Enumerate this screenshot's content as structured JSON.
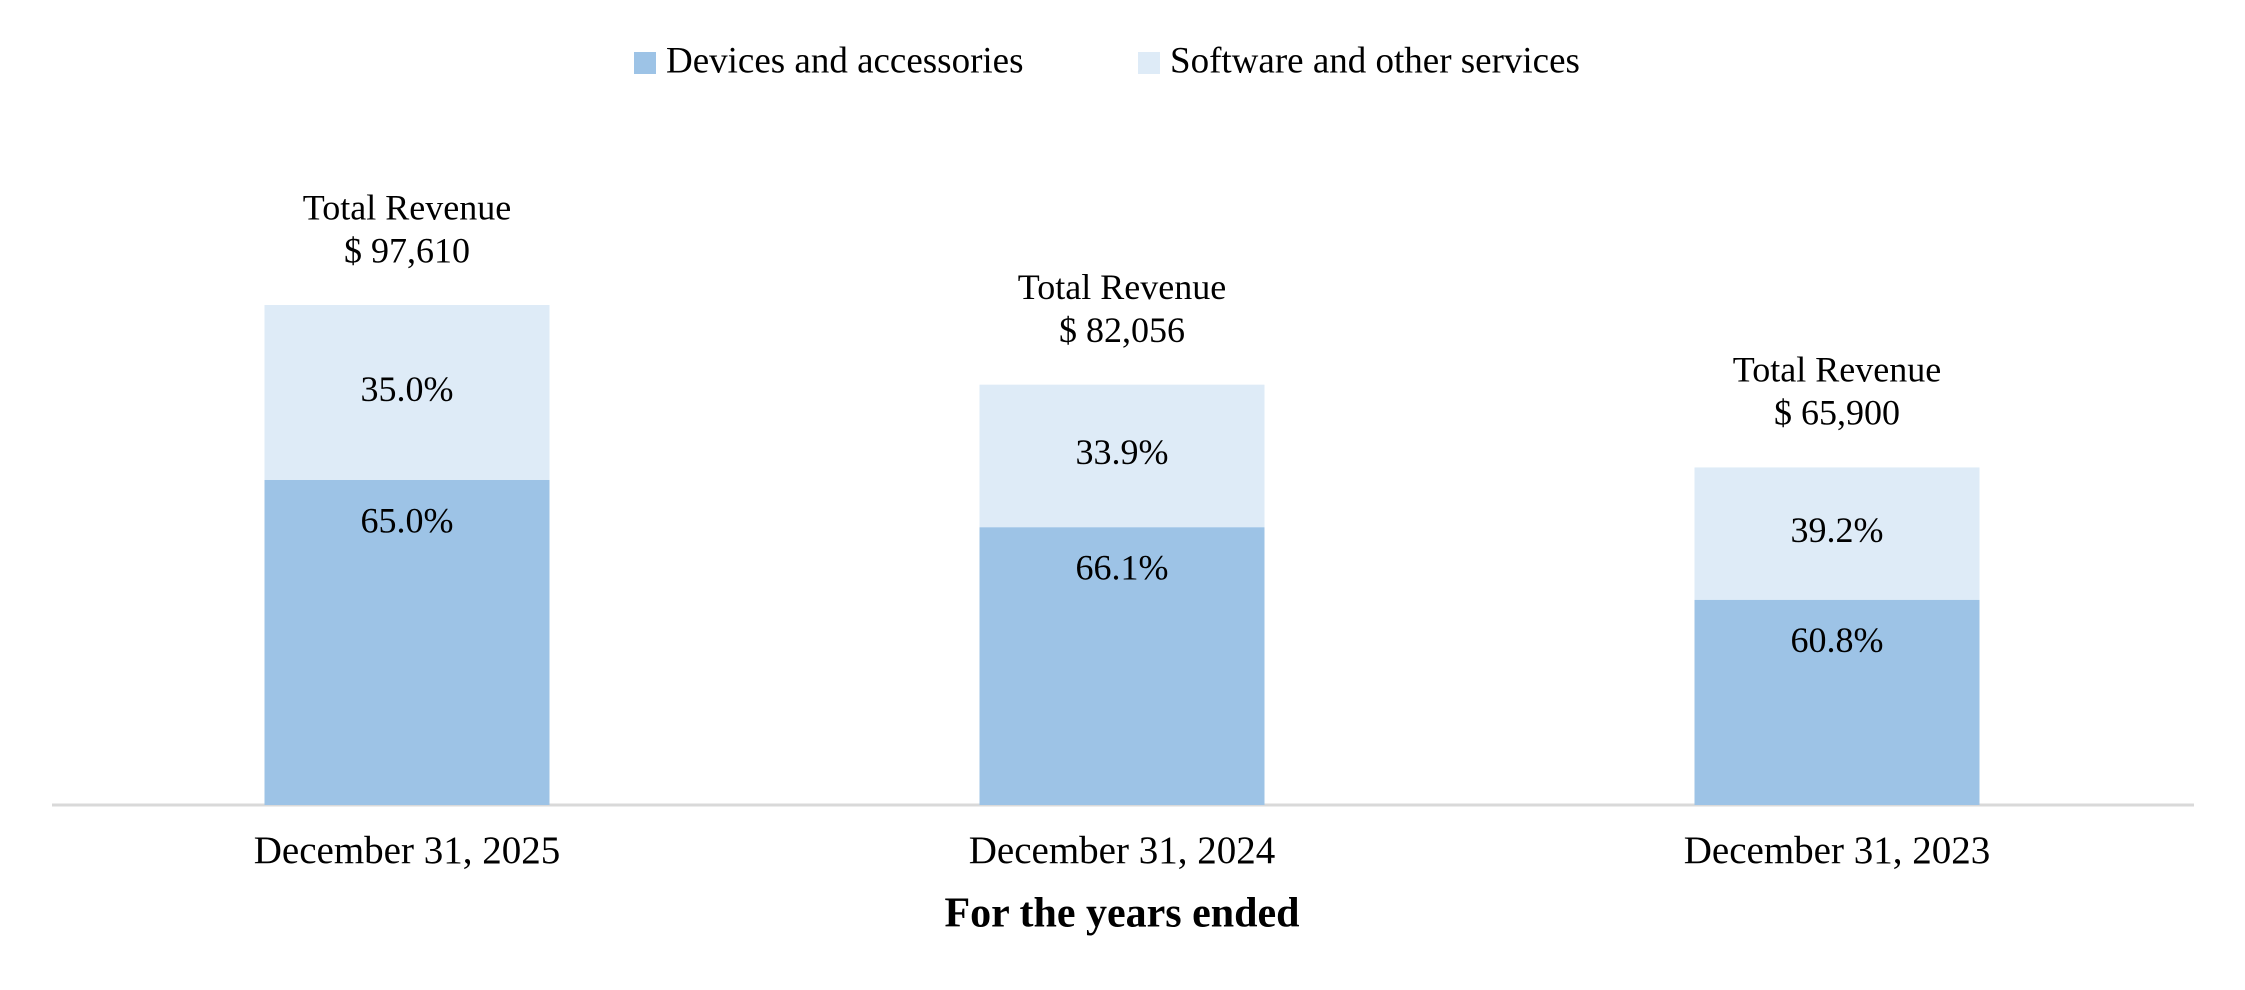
{
  "chart_data": {
    "type": "stacked-bar",
    "x_label": "For the years ended",
    "categories": [
      "December 31, 2025",
      "December 31, 2024",
      "December 31, 2023"
    ],
    "series": [
      {
        "name": "Devices and accessories",
        "color": "#9dc3e6",
        "values": [
          65.0,
          66.1,
          60.8
        ],
        "value_labels": [
          "65.0%",
          "66.1%",
          "60.8%"
        ]
      },
      {
        "name": "Software and other services",
        "color": "#deebf7",
        "values": [
          35.0,
          33.9,
          39.2
        ],
        "value_labels": [
          "35.0%",
          "33.9%",
          "39.2%"
        ]
      }
    ],
    "totals": {
      "name": "Total Revenue",
      "values": [
        97610,
        82056,
        65900
      ],
      "value_labels": [
        "$ 97,610",
        "$ 82,056",
        "$ 65,900"
      ]
    },
    "legend": "top"
  }
}
